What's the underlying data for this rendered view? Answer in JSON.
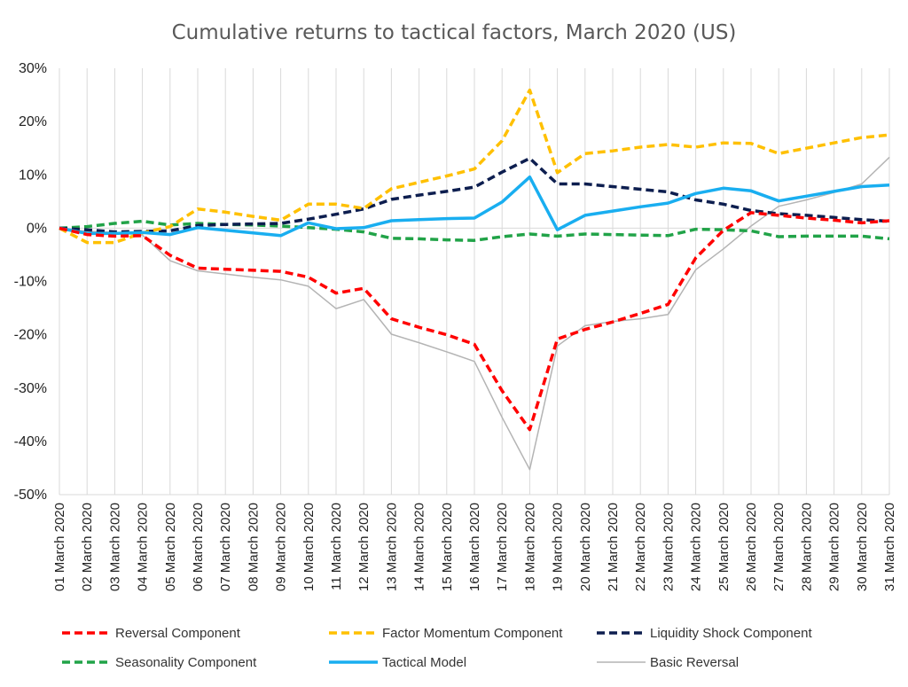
{
  "chart_data": {
    "type": "line",
    "title": "Cumulative returns to tactical factors, March 2020 (US)",
    "xlabel": "",
    "ylabel": "",
    "ylim": [
      -50,
      30
    ],
    "yticks": [
      "30%",
      "20%",
      "10%",
      "0%",
      "-10%",
      "-20%",
      "-30%",
      "-40%",
      "-50%"
    ],
    "grid": "vertical",
    "legend_position": "bottom",
    "categories": [
      "01 March 2020",
      "02 March 2020",
      "03 March 2020",
      "04 March 2020",
      "05 March 2020",
      "06 March 2020",
      "07 March 2020",
      "08 March 2020",
      "09 March 2020",
      "10 March 2020",
      "11 March 2020",
      "12 March 2020",
      "13 March 2020",
      "14 March 2020",
      "15 March 2020",
      "16 March 2020",
      "17 March 2020",
      "18 March 2020",
      "19 March 2020",
      "20 March 2020",
      "21 March 2020",
      "22 March 2020",
      "23 March 2020",
      "24 March 2020",
      "25 March 2020",
      "26 March 2020",
      "27 March 2020",
      "28 March 2020",
      "29 March 2020",
      "30 March 2020",
      "31 March 2020"
    ],
    "series": [
      {
        "name": "Reversal Component",
        "color": "#ff0000",
        "style": "dashed",
        "values": [
          0,
          -1.2,
          -1.5,
          -1.4,
          -5.1,
          -7.5,
          -7.7,
          -7.9,
          -8.1,
          -9.2,
          -12.2,
          -11.3,
          -17.0,
          -18.6,
          -20.0,
          -21.8,
          -30.5,
          -37.8,
          -20.8,
          -19.0,
          -17.6,
          -16.0,
          -14.3,
          -5.6,
          -0.4,
          2.9,
          2.4,
          1.9,
          1.5,
          1.0,
          1.4
        ]
      },
      {
        "name": "Factor Momentum Component",
        "color": "#ffc000",
        "style": "dashed",
        "values": [
          0,
          -2.7,
          -2.7,
          -0.9,
          0.3,
          3.6,
          3.0,
          2.2,
          1.5,
          4.5,
          4.5,
          3.7,
          7.4,
          8.6,
          9.8,
          11.1,
          16.4,
          25.9,
          10.4,
          14.0,
          14.5,
          15.2,
          15.7,
          15.2,
          16.0,
          15.9,
          14.0,
          15.0,
          16.0,
          17.0,
          17.5
        ]
      },
      {
        "name": "Liquidity Shock Component",
        "color": "#0d1e4f",
        "style": "dashed",
        "values": [
          0,
          -0.3,
          -0.7,
          -0.6,
          -0.5,
          0.5,
          0.7,
          0.8,
          0.9,
          1.7,
          2.6,
          3.6,
          5.4,
          6.2,
          6.9,
          7.7,
          10.5,
          13.1,
          8.3,
          8.3,
          7.8,
          7.3,
          6.8,
          5.3,
          4.5,
          3.3,
          2.7,
          2.4,
          2.0,
          1.6,
          1.3
        ]
      },
      {
        "name": "Seasonality Component",
        "color": "#21a348",
        "style": "dashed",
        "values": [
          0,
          0.3,
          0.9,
          1.3,
          0.6,
          0.9,
          0.7,
          0.6,
          0.4,
          0.1,
          -0.2,
          -0.7,
          -1.9,
          -2.0,
          -2.2,
          -2.3,
          -1.6,
          -1.1,
          -1.5,
          -1.1,
          -1.2,
          -1.3,
          -1.4,
          -0.2,
          -0.3,
          -0.5,
          -1.6,
          -1.5,
          -1.5,
          -1.5,
          -2.0
        ]
      },
      {
        "name": "Tactical Model",
        "color": "#19aef0",
        "style": "solid",
        "values": [
          0,
          -1.0,
          -1.0,
          -0.8,
          -1.2,
          0.1,
          -0.4,
          -0.9,
          -1.4,
          1.0,
          -0.1,
          0.1,
          1.4,
          1.6,
          1.8,
          1.9,
          4.9,
          9.6,
          -0.3,
          2.4,
          3.2,
          4.0,
          4.7,
          6.5,
          7.5,
          7.0,
          5.1,
          6.0,
          6.9,
          7.8,
          8.1
        ]
      },
      {
        "name": "Basic Reversal",
        "color": "#b4b4b4",
        "style": "solid",
        "values": [
          0,
          -0.6,
          -0.8,
          -1.3,
          -6.1,
          -8.0,
          -8.6,
          -9.2,
          -9.7,
          -10.9,
          -15.1,
          -13.4,
          -19.9,
          -21.5,
          -23.2,
          -25.0,
          -35.5,
          -45.3,
          -22.1,
          -18.3,
          -17.5,
          -17.0,
          -16.2,
          -7.8,
          -3.9,
          0.4,
          4.1,
          5.3,
          6.7,
          8.3,
          13.3
        ]
      }
    ]
  }
}
